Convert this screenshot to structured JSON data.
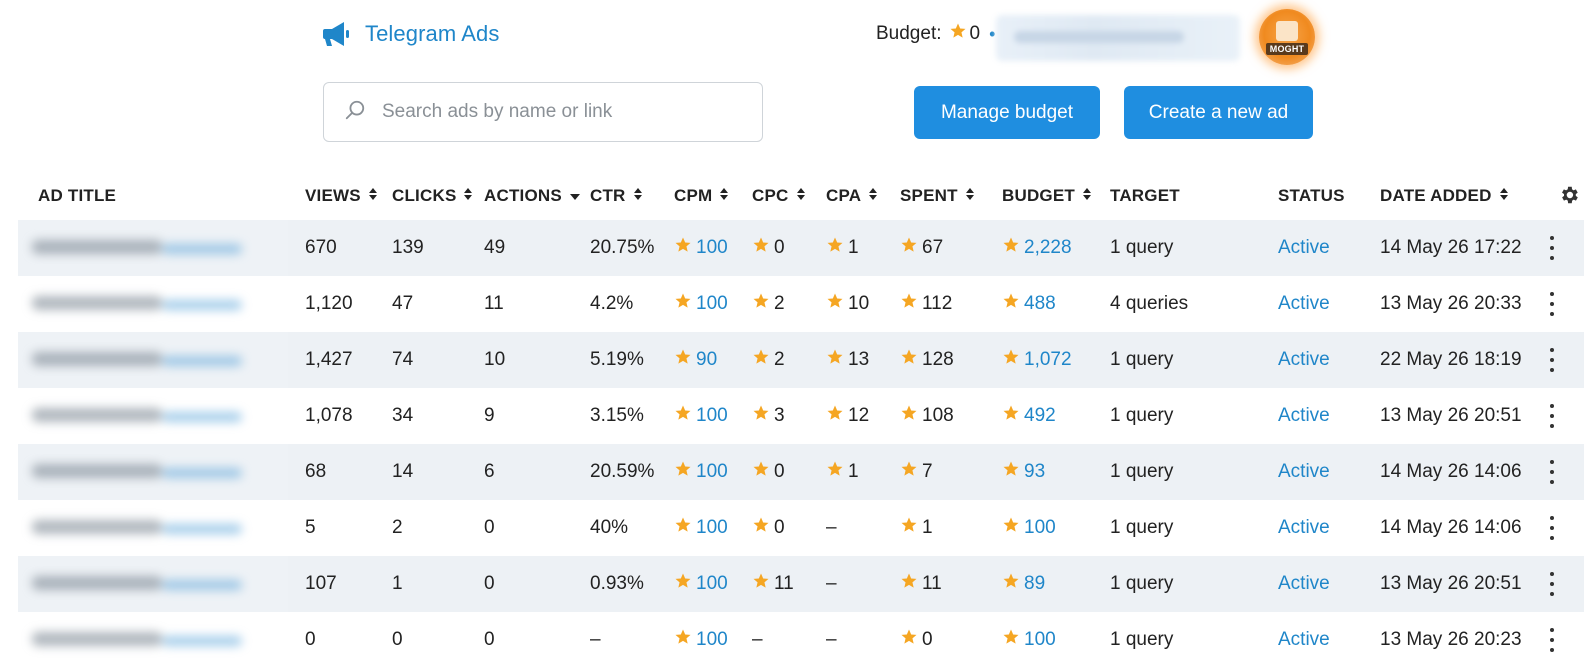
{
  "header": {
    "brand_title": "Telegram Ads",
    "budget_label": "Budget:",
    "budget_value": "0",
    "avatar_text": "MOGHT"
  },
  "search": {
    "placeholder": "Search ads by name or link"
  },
  "buttons": {
    "manage_budget": "Manage budget",
    "create_ad": "Create a new ad"
  },
  "colors": {
    "accent": "#1f86c9",
    "button": "#1f8ee0",
    "star": "#f5a623",
    "row_shade": "#edf1f5"
  },
  "table": {
    "columns": [
      {
        "key": "title",
        "label": "AD TITLE",
        "sortable": false
      },
      {
        "key": "views",
        "label": "VIEWS",
        "sortable": true
      },
      {
        "key": "clicks",
        "label": "CLICKS",
        "sortable": true
      },
      {
        "key": "actions",
        "label": "ACTIONS",
        "sortable": "desc"
      },
      {
        "key": "ctr",
        "label": "CTR",
        "sortable": true
      },
      {
        "key": "cpm",
        "label": "CPM",
        "sortable": true
      },
      {
        "key": "cpc",
        "label": "CPC",
        "sortable": true
      },
      {
        "key": "cpa",
        "label": "CPA",
        "sortable": true
      },
      {
        "key": "spent",
        "label": "SPENT",
        "sortable": true
      },
      {
        "key": "budget",
        "label": "BUDGET",
        "sortable": true
      },
      {
        "key": "target",
        "label": "TARGET",
        "sortable": false
      },
      {
        "key": "status",
        "label": "STATUS",
        "sortable": false
      },
      {
        "key": "date",
        "label": "DATE ADDED",
        "sortable": true
      }
    ],
    "rows": [
      {
        "views": "670",
        "clicks": "139",
        "actions": "49",
        "ctr": "20.75%",
        "cpm": "100",
        "cpc": "0",
        "cpa": "1",
        "spent": "67",
        "budget": "2,228",
        "target": "1 query",
        "status": "Active",
        "date": "14 May 26 17:22"
      },
      {
        "views": "1,120",
        "clicks": "47",
        "actions": "11",
        "ctr": "4.2%",
        "cpm": "100",
        "cpc": "2",
        "cpa": "10",
        "spent": "112",
        "budget": "488",
        "target": "4 queries",
        "status": "Active",
        "date": "13 May 26 20:33"
      },
      {
        "views": "1,427",
        "clicks": "74",
        "actions": "10",
        "ctr": "5.19%",
        "cpm": "90",
        "cpc": "2",
        "cpa": "13",
        "spent": "128",
        "budget": "1,072",
        "target": "1 query",
        "status": "Active",
        "date": "22 May 26 18:19"
      },
      {
        "views": "1,078",
        "clicks": "34",
        "actions": "9",
        "ctr": "3.15%",
        "cpm": "100",
        "cpc": "3",
        "cpa": "12",
        "spent": "108",
        "budget": "492",
        "target": "1 query",
        "status": "Active",
        "date": "13 May 26 20:51"
      },
      {
        "views": "68",
        "clicks": "14",
        "actions": "6",
        "ctr": "20.59%",
        "cpm": "100",
        "cpc": "0",
        "cpa": "1",
        "spent": "7",
        "budget": "93",
        "target": "1 query",
        "status": "Active",
        "date": "14 May 26 14:06"
      },
      {
        "views": "5",
        "clicks": "2",
        "actions": "0",
        "ctr": "40%",
        "cpm": "100",
        "cpc": "0",
        "cpa": "–",
        "spent": "1",
        "budget": "100",
        "target": "1 query",
        "status": "Active",
        "date": "14 May 26 14:06"
      },
      {
        "views": "107",
        "clicks": "1",
        "actions": "0",
        "ctr": "0.93%",
        "cpm": "100",
        "cpc": "11",
        "cpa": "–",
        "spent": "11",
        "budget": "89",
        "target": "1 query",
        "status": "Active",
        "date": "13 May 26 20:51"
      },
      {
        "views": "0",
        "clicks": "0",
        "actions": "0",
        "ctr": "–",
        "cpm": "100",
        "cpc": "–",
        "cpa": "–",
        "spent": "0",
        "budget": "100",
        "target": "1 query",
        "status": "Active",
        "date": "13 May 26 20:23"
      }
    ]
  }
}
